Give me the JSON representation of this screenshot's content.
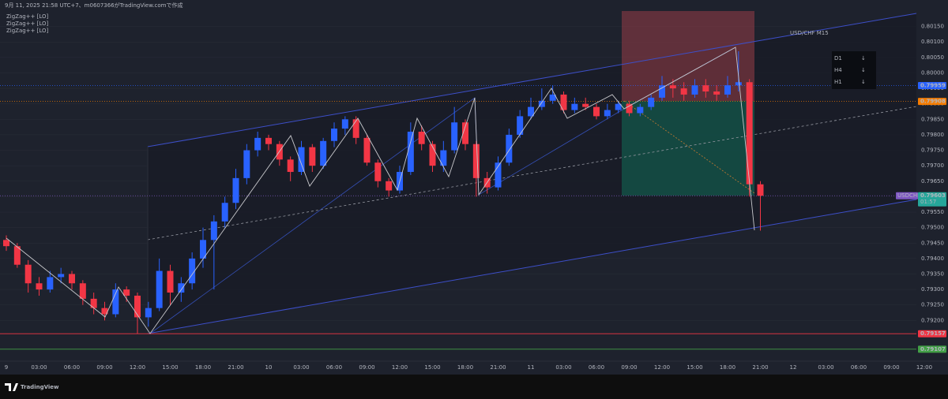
{
  "chart_data": {
    "type": "candlestick",
    "title": "USD/CHF M15",
    "caption": "9月 11, 2025 21:58 UTC+7、m0607366がTradingView.comで作成",
    "indicators": [
      "ZigZag++ [LO]",
      "ZigZag++ [LO]",
      "ZigZag++ [LO]"
    ],
    "branding": "TradingView",
    "trend_panel": [
      {
        "tf": "D1",
        "arrow": "↓"
      },
      {
        "tf": "H4",
        "arrow": "↓"
      },
      {
        "tf": "H1",
        "arrow": "↓"
      }
    ],
    "x_labels": [
      "9",
      "03:00",
      "06:00",
      "09:00",
      "12:00",
      "15:00",
      "18:00",
      "21:00",
      "10",
      "03:00",
      "06:00",
      "09:00",
      "12:00",
      "15:00",
      "18:00",
      "21:00",
      "11",
      "03:00",
      "06:00",
      "09:00",
      "12:00",
      "15:00",
      "18:00",
      "21:00",
      "12",
      "03:00",
      "06:00",
      "09:00",
      "12:00"
    ],
    "up_color": "#2962ff",
    "down_color": "#f23645",
    "open": [
      0.7946,
      0.7944,
      0.7938,
      0.7932,
      0.793,
      0.7934,
      0.7935,
      0.7932,
      0.7927,
      0.7924,
      0.7922,
      0.793,
      0.7928,
      0.7921,
      0.7924,
      0.7936,
      0.7929,
      0.7932,
      0.794,
      0.7946,
      0.7952,
      0.7958,
      0.7966,
      0.7975,
      0.7979,
      0.7977,
      0.7972,
      0.7968,
      0.7976,
      0.797,
      0.7978,
      0.7982,
      0.7985,
      0.7979,
      0.7971,
      0.7965,
      0.7962,
      0.7968,
      0.7981,
      0.7977,
      0.797,
      0.7975,
      0.7984,
      0.7977,
      0.7966,
      0.7963,
      0.7971,
      0.798,
      0.7986,
      0.7989,
      0.7991,
      0.7993,
      0.7988,
      0.799,
      0.7989,
      0.7986,
      0.7988,
      0.799,
      0.7987,
      0.7989,
      0.7992,
      0.7996,
      0.7995,
      0.7993,
      0.7996,
      0.7994,
      0.7993,
      0.7996,
      0.7997,
      0.7964
    ],
    "high": [
      0.79475,
      0.7945,
      0.79395,
      0.7934,
      0.7936,
      0.7937,
      0.7936,
      0.7933,
      0.7929,
      0.7926,
      0.7932,
      0.7931,
      0.7929,
      0.7926,
      0.794,
      0.7938,
      0.7934,
      0.7942,
      0.795,
      0.7954,
      0.796,
      0.7969,
      0.7977,
      0.7981,
      0.798,
      0.7978,
      0.7973,
      0.7978,
      0.7977,
      0.7979,
      0.7984,
      0.7986,
      0.7986,
      0.798,
      0.7972,
      0.7966,
      0.797,
      0.7984,
      0.7983,
      0.7978,
      0.7978,
      0.7989,
      0.7985,
      0.7978,
      0.7968,
      0.7973,
      0.7982,
      0.7988,
      0.7992,
      0.7995,
      0.7996,
      0.7994,
      0.7992,
      0.7992,
      0.799,
      0.799,
      0.7991,
      0.7991,
      0.799,
      0.7993,
      0.7999,
      0.7998,
      0.7997,
      0.7998,
      0.7998,
      0.7996,
      0.7999,
      0.8007,
      0.7998,
      0.7965
    ],
    "low": [
      0.79425,
      0.7937,
      0.7929,
      0.7928,
      0.7929,
      0.7932,
      0.793,
      0.7925,
      0.7922,
      0.792,
      0.7921,
      0.7926,
      0.79157,
      0.7918,
      0.7923,
      0.7925,
      0.7926,
      0.793,
      0.7937,
      0.793,
      0.795,
      0.7956,
      0.7964,
      0.7973,
      0.7975,
      0.797,
      0.7965,
      0.7967,
      0.7968,
      0.7969,
      0.7976,
      0.798,
      0.7977,
      0.797,
      0.7963,
      0.796,
      0.7961,
      0.7967,
      0.7975,
      0.7968,
      0.7968,
      0.7974,
      0.7975,
      0.796,
      0.7961,
      0.7962,
      0.797,
      0.7979,
      0.7985,
      0.7988,
      0.799,
      0.7987,
      0.7987,
      0.7988,
      0.7985,
      0.7985,
      0.7987,
      0.7986,
      0.7986,
      0.7988,
      0.7991,
      0.7992,
      0.7991,
      0.7992,
      0.7992,
      0.7991,
      0.7992,
      0.7994,
      0.796,
      0.7949
    ],
    "close": [
      0.7944,
      0.7938,
      0.7932,
      0.793,
      0.7934,
      0.7935,
      0.7932,
      0.7927,
      0.7924,
      0.7922,
      0.793,
      0.7928,
      0.7921,
      0.7924,
      0.7936,
      0.7929,
      0.7932,
      0.794,
      0.7946,
      0.7952,
      0.7958,
      0.7966,
      0.7975,
      0.7979,
      0.7977,
      0.7972,
      0.7968,
      0.7976,
      0.797,
      0.7978,
      0.7982,
      0.7985,
      0.7979,
      0.7971,
      0.7965,
      0.7962,
      0.7968,
      0.7981,
      0.7977,
      0.797,
      0.7975,
      0.7984,
      0.7977,
      0.7966,
      0.7963,
      0.7971,
      0.798,
      0.7986,
      0.7989,
      0.7991,
      0.7993,
      0.7988,
      0.799,
      0.7989,
      0.7986,
      0.7988,
      0.799,
      0.7987,
      0.7989,
      0.7992,
      0.7996,
      0.7995,
      0.7993,
      0.7996,
      0.7994,
      0.7993,
      0.7996,
      0.7997,
      0.7964,
      0.79603
    ],
    "ylim": [
      0.79025,
      0.802
    ],
    "yticks": [
      {
        "value": 0.792,
        "label": "0.79200"
      },
      {
        "value": 0.7925,
        "label": "0.79250"
      },
      {
        "value": 0.793,
        "label": "0.79300"
      },
      {
        "value": 0.7935,
        "label": "0.79350"
      },
      {
        "value": 0.794,
        "label": "0.79400"
      },
      {
        "value": 0.7945,
        "label": "0.79450"
      },
      {
        "value": 0.795,
        "label": "0.79500"
      },
      {
        "value": 0.7955,
        "label": "0.79550"
      },
      {
        "value": 0.796,
        "label": "0.79600"
      },
      {
        "value": 0.7965,
        "label": "0.79650"
      },
      {
        "value": 0.797,
        "label": "0.79700"
      },
      {
        "value": 0.7975,
        "label": "0.79750"
      },
      {
        "value": 0.798,
        "label": "0.79800"
      },
      {
        "value": 0.7985,
        "label": "0.79850"
      },
      {
        "value": 0.799,
        "label": "0.79900"
      },
      {
        "value": 0.7995,
        "label": "0.79950"
      },
      {
        "value": 0.8,
        "label": "0.80000"
      },
      {
        "value": 0.8005,
        "label": "0.80050"
      },
      {
        "value": 0.801,
        "label": "0.80100"
      },
      {
        "value": 0.8015,
        "label": "0.80150"
      }
    ],
    "levels": [
      {
        "value": 0.79959,
        "color": "#2962ff"
      },
      {
        "value": 0.79908,
        "color": "#f57c00"
      },
      {
        "value": 0.79157,
        "color": "#f23645"
      },
      {
        "value": 0.79107,
        "color": "#43a047"
      }
    ],
    "last_price": {
      "value": 0.79603,
      "symbol": "USDCHF",
      "countdown": "01:57",
      "color": "#26a69a",
      "tag_color": "#7e57c2"
    }
  }
}
